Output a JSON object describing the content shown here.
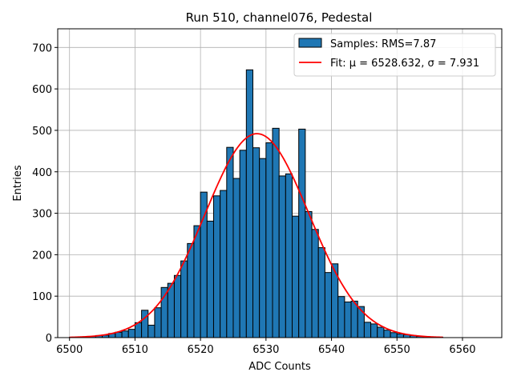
{
  "chart_data": {
    "type": "bar",
    "title": "Run 510, channel076, Pedestal",
    "xlabel": "ADC Counts",
    "ylabel": "Entries",
    "xlim": [
      6498.2,
      6566.0
    ],
    "ylim": [
      0,
      745
    ],
    "grid": true,
    "legend_placement": "top-right",
    "bar_color": "#1f77b4",
    "fit_color": "#ff0000",
    "xticks": [
      6500,
      6510,
      6520,
      6530,
      6540,
      6550,
      6560
    ],
    "yticks": [
      0,
      100,
      200,
      300,
      400,
      500,
      600,
      700
    ],
    "bin_width": 1,
    "bins": [
      [
        6500,
        1
      ],
      [
        6501,
        1
      ],
      [
        6502,
        2
      ],
      [
        6503,
        3
      ],
      [
        6504,
        5
      ],
      [
        6505,
        6
      ],
      [
        6506,
        10
      ],
      [
        6507,
        13
      ],
      [
        6508,
        16
      ],
      [
        6509,
        20
      ],
      [
        6510,
        36
      ],
      [
        6511,
        66
      ],
      [
        6512,
        30
      ],
      [
        6513,
        72
      ],
      [
        6514,
        121
      ],
      [
        6515,
        131
      ],
      [
        6516,
        150
      ],
      [
        6517,
        185
      ],
      [
        6518,
        227
      ],
      [
        6519,
        270
      ],
      [
        6520,
        351
      ],
      [
        6521,
        281
      ],
      [
        6522,
        342
      ],
      [
        6523,
        355
      ],
      [
        6524,
        459
      ],
      [
        6525,
        384
      ],
      [
        6526,
        452
      ],
      [
        6527,
        646
      ],
      [
        6528,
        458
      ],
      [
        6529,
        432
      ],
      [
        6530,
        470
      ],
      [
        6531,
        505
      ],
      [
        6532,
        390
      ],
      [
        6533,
        395
      ],
      [
        6534,
        293
      ],
      [
        6535,
        503
      ],
      [
        6536,
        304
      ],
      [
        6537,
        261
      ],
      [
        6538,
        217
      ],
      [
        6539,
        157
      ],
      [
        6540,
        178
      ],
      [
        6541,
        99
      ],
      [
        6542,
        86
      ],
      [
        6543,
        88
      ],
      [
        6544,
        75
      ],
      [
        6545,
        37
      ],
      [
        6546,
        33
      ],
      [
        6547,
        25
      ],
      [
        6548,
        18
      ],
      [
        6549,
        12
      ],
      [
        6550,
        9
      ],
      [
        6551,
        7
      ],
      [
        6552,
        5
      ],
      [
        6553,
        3
      ],
      [
        6554,
        2
      ],
      [
        6555,
        1
      ],
      [
        6556,
        1
      ]
    ],
    "fit": {
      "mu": 6528.632,
      "sigma": 7.931,
      "amplitude": 492,
      "x_range": [
        6500,
        6557
      ]
    },
    "legend": [
      {
        "label": "Samples: RMS=7.87",
        "kind": "bar"
      },
      {
        "label": "Fit: μ = 6528.632, σ = 7.931",
        "kind": "line"
      }
    ]
  }
}
